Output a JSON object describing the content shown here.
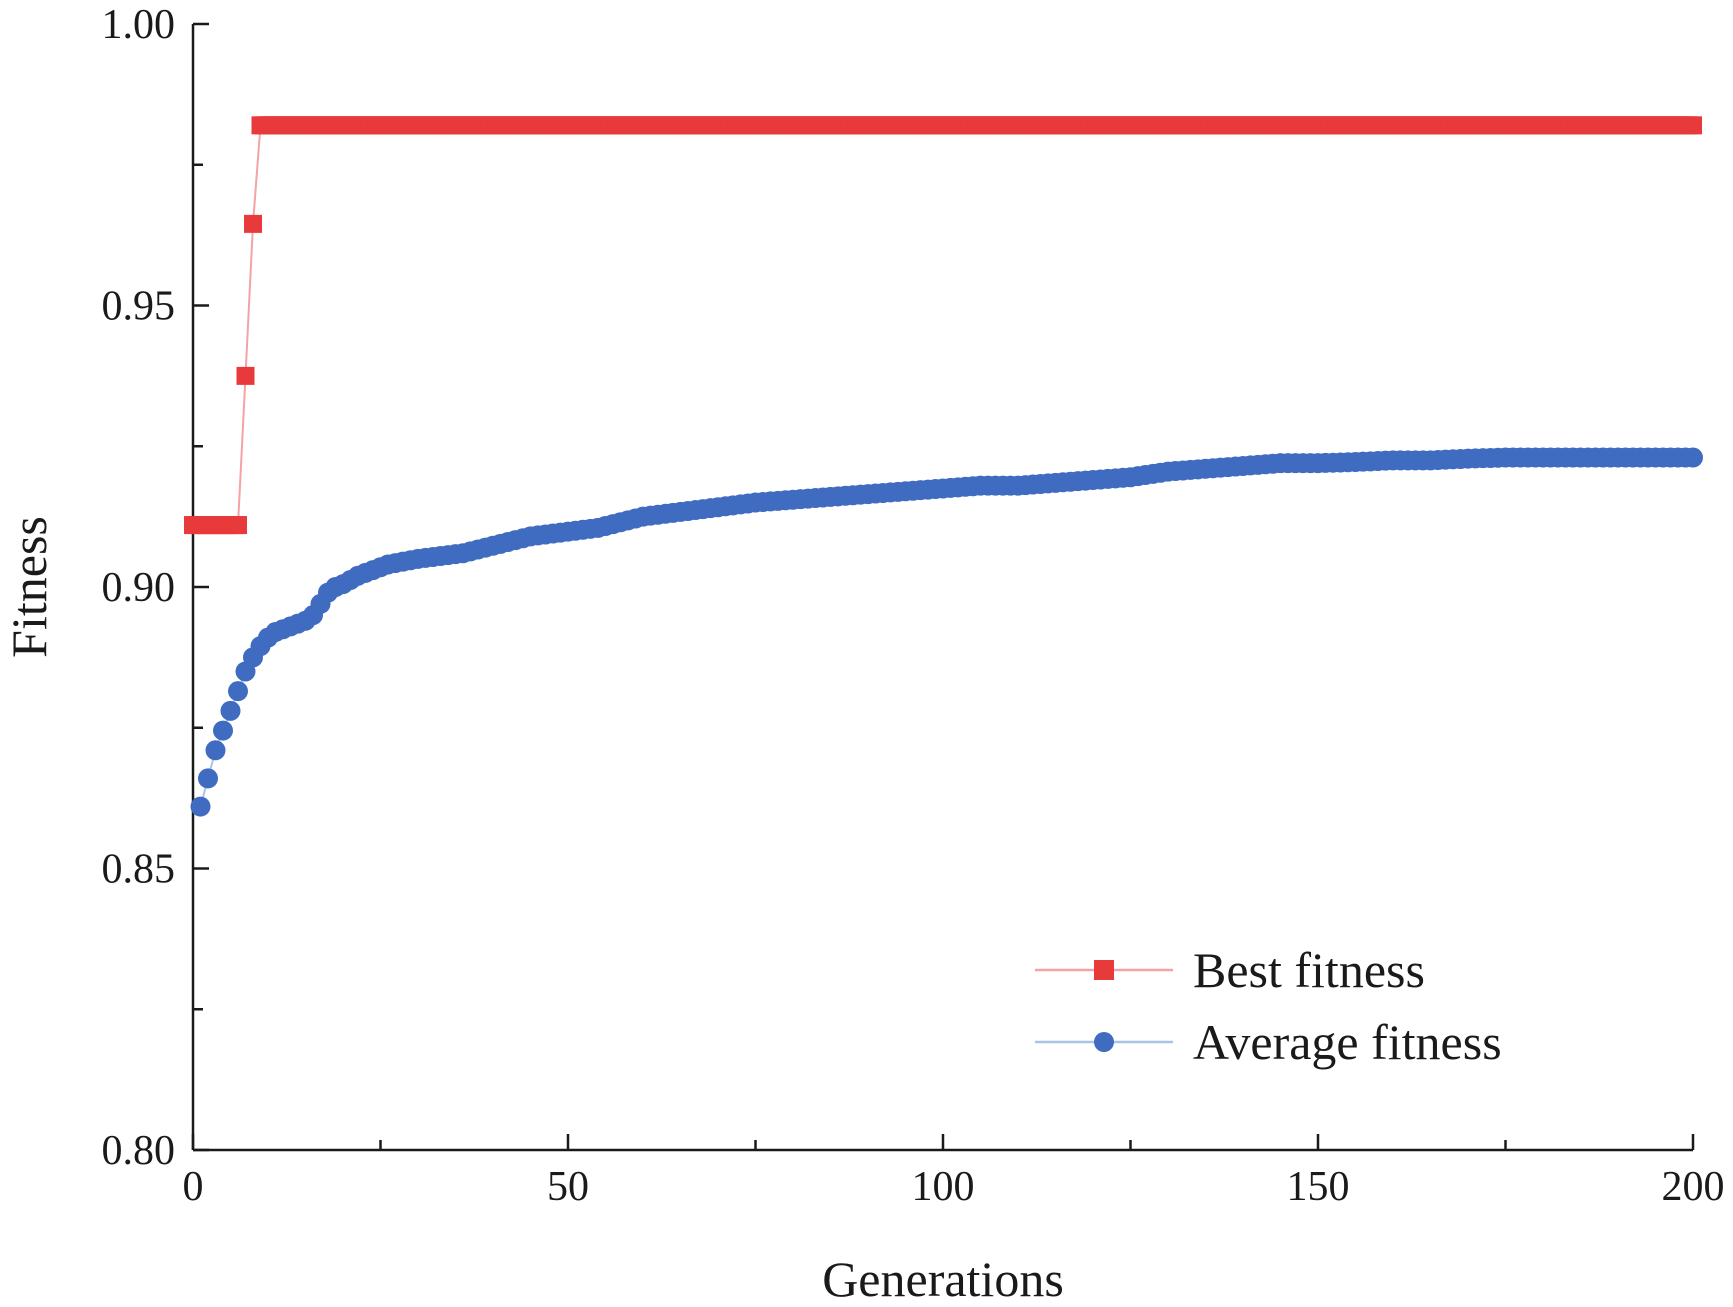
{
  "chart_data": {
    "type": "line",
    "title": "",
    "xlabel": "Generations",
    "ylabel": "Fitness",
    "xlim": [
      0,
      200
    ],
    "ylim": [
      0.8,
      1.0
    ],
    "xticks": [
      0,
      50,
      100,
      150,
      200
    ],
    "xtick_labels": [
      "0",
      "50",
      "100",
      "150",
      "200"
    ],
    "yticks": [
      0.8,
      0.85,
      0.9,
      0.95,
      1.0
    ],
    "ytick_labels": [
      "0.80",
      "0.85",
      "0.90",
      "0.95",
      "1.00"
    ],
    "x_minor_step": 25,
    "y_minor_step": 0.025,
    "legend_position": "bottom-right",
    "series": [
      {
        "name": "Best fitness",
        "color": "#e8393b",
        "line_color": "#f4a3a4",
        "marker": "square",
        "x": [
          0,
          1,
          2,
          3,
          4,
          5,
          6,
          7,
          8,
          9,
          200
        ],
        "y": [
          0.911,
          0.911,
          0.911,
          0.911,
          0.911,
          0.911,
          0.911,
          0.9375,
          0.9645,
          0.982,
          0.982
        ]
      },
      {
        "name": "Average fitness",
        "color": "#3f6bc0",
        "line_color": "#a9c3ec",
        "marker": "circle",
        "x": [
          1,
          2,
          3,
          4,
          5,
          6,
          7,
          8,
          9,
          10,
          11,
          12,
          13,
          14,
          15,
          16,
          17,
          18,
          19,
          20,
          22,
          24,
          26,
          28,
          30,
          33,
          36,
          39,
          42,
          45,
          48,
          51,
          54,
          57,
          60,
          63,
          66,
          69,
          72,
          75,
          80,
          85,
          90,
          95,
          100,
          105,
          110,
          115,
          120,
          125,
          130,
          135,
          140,
          145,
          150,
          155,
          160,
          165,
          170,
          175,
          180,
          185,
          190,
          195,
          200
        ],
        "y": [
          0.861,
          0.866,
          0.871,
          0.8745,
          0.878,
          0.8815,
          0.885,
          0.8875,
          0.8895,
          0.891,
          0.892,
          0.8925,
          0.893,
          0.8935,
          0.894,
          0.895,
          0.897,
          0.899,
          0.9,
          0.9005,
          0.902,
          0.903,
          0.904,
          0.9045,
          0.905,
          0.9055,
          0.906,
          0.907,
          0.908,
          0.909,
          0.9095,
          0.91,
          0.9105,
          0.9115,
          0.9125,
          0.913,
          0.9135,
          0.914,
          0.9145,
          0.915,
          0.9155,
          0.916,
          0.9165,
          0.917,
          0.9175,
          0.918,
          0.918,
          0.9185,
          0.919,
          0.9195,
          0.9205,
          0.921,
          0.9215,
          0.922,
          0.922,
          0.9222,
          0.9225,
          0.9225,
          0.9228,
          0.923,
          0.923,
          0.923,
          0.923,
          0.923,
          0.923
        ]
      }
    ]
  }
}
